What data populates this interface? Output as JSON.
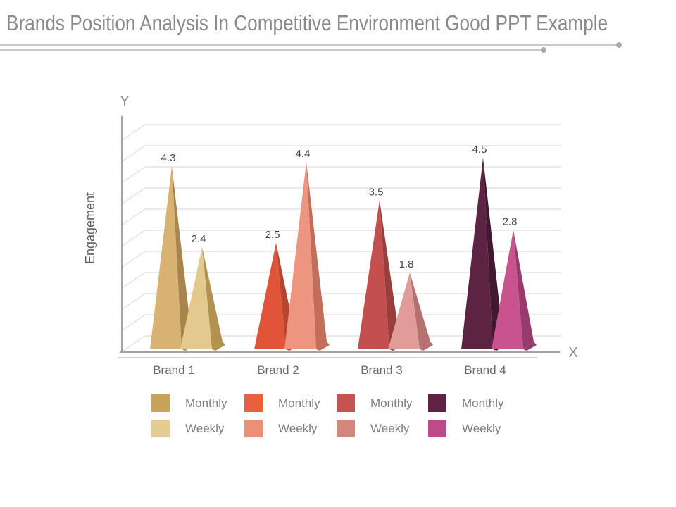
{
  "page": {
    "title": "Brands Position Analysis In Competitive Environment Good PPT Example"
  },
  "chart_data": {
    "type": "bar",
    "style": "3d-pyramid-columns",
    "title": "Brands Position Analysis In Competitive Environment Good PPT Example",
    "xlabel": "X",
    "ylabel": "Engagement",
    "x_axis_letter": "X",
    "y_axis_letter": "Y",
    "ylim": [
      0,
      5
    ],
    "gridline_step": 0.5,
    "grid": true,
    "legend_position": "bottom",
    "categories": [
      "Brand 1",
      "Brand 2",
      "Brand 3",
      "Brand 4"
    ],
    "series_labels": [
      "Monthly",
      "Weekly"
    ],
    "groups": [
      {
        "category": "Brand 1",
        "monthly": {
          "label": "Monthly",
          "value": 4.3,
          "value_label": "4.3",
          "face": "#D7B273",
          "side": "#A8854C",
          "legend": "#C8A35A"
        },
        "weekly": {
          "label": "Weekly",
          "value": 2.4,
          "value_label": "2.4",
          "face": "#E4C98E",
          "side": "#B2924F",
          "legend": "#E5CD92"
        }
      },
      {
        "category": "Brand 2",
        "monthly": {
          "label": "Monthly",
          "value": 2.5,
          "value_label": "2.5",
          "face": "#E1543A",
          "side": "#B7462F",
          "legend": "#E9603F"
        },
        "weekly": {
          "label": "Weekly",
          "value": 4.4,
          "value_label": "4.4",
          "face": "#EE957F",
          "side": "#C36E5B",
          "legend": "#EC8F77"
        }
      },
      {
        "category": "Brand 3",
        "monthly": {
          "label": "Monthly",
          "value": 3.5,
          "value_label": "3.5",
          "face": "#C34F4E",
          "side": "#9A3D3D",
          "legend": "#C75351"
        },
        "weekly": {
          "label": "Weekly",
          "value": 1.8,
          "value_label": "1.8",
          "face": "#E19B98",
          "side": "#B47170",
          "legend": "#D5867F"
        }
      },
      {
        "category": "Brand 4",
        "monthly": {
          "label": "Monthly",
          "value": 4.5,
          "value_label": "4.5",
          "face": "#5D2343",
          "side": "#421731",
          "legend": "#5E2245"
        },
        "weekly": {
          "label": "Weekly",
          "value": 2.8,
          "value_label": "2.8",
          "face": "#C8538F",
          "side": "#983A6C",
          "legend": "#BF4A89"
        }
      }
    ],
    "colors": {
      "title_text": "#8A8A8A",
      "axis_line": "#A3A3A3",
      "gridline": "#D6D6D6",
      "value_label_text": "#454545",
      "category_label_text": "#6A6A6A",
      "axis_letter_text": "#8C8C8C",
      "axis_title_text": "#5F5F5F"
    }
  }
}
